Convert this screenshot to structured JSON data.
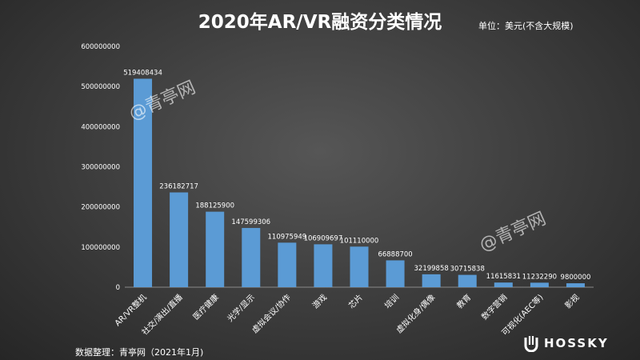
{
  "header": {
    "title": "2020年AR/VR融资分类情况",
    "unit": "单位：美元(不含大规模)"
  },
  "footer": {
    "source": "数据整理：青亭网（2021年1月)"
  },
  "watermarks": [
    "@青亭网",
    "@青亭网"
  ],
  "logo": {
    "text": "HOSSKY"
  },
  "colors": {
    "bar": "#5b9bd5",
    "axis": "#8a8a8a",
    "text": "#ffffff"
  },
  "chart_data": {
    "type": "bar",
    "categories": [
      "AR/VR整机",
      "社交/演出/直播",
      "医疗健康",
      "光学/显示",
      "虚拟会议/协作",
      "游戏",
      "芯片",
      "培训",
      "虚拟化身/偶像",
      "教育",
      "数字营销",
      "可视化(AEC等)",
      "影视"
    ],
    "values": [
      519408434,
      236182717,
      188125900,
      147599306,
      110975949,
      106909697,
      101110000,
      66888700,
      32199858,
      30715838,
      11615831,
      11232290,
      9800000
    ],
    "value_labels": [
      "519408434",
      "236182717",
      "188125900",
      "147599306",
      "110975949",
      "106909697",
      "101110000",
      "66888700",
      "32199858",
      "30715838",
      "11615831",
      "11232290",
      "9800000"
    ],
    "yticks": [
      0,
      100000000,
      200000000,
      300000000,
      400000000,
      500000000,
      600000000
    ],
    "ytick_labels": [
      "0",
      "100000000",
      "200000000",
      "300000000",
      "400000000",
      "500000000",
      "600000000"
    ],
    "ylim": [
      0,
      600000000
    ],
    "grid": false,
    "legend": "none"
  }
}
